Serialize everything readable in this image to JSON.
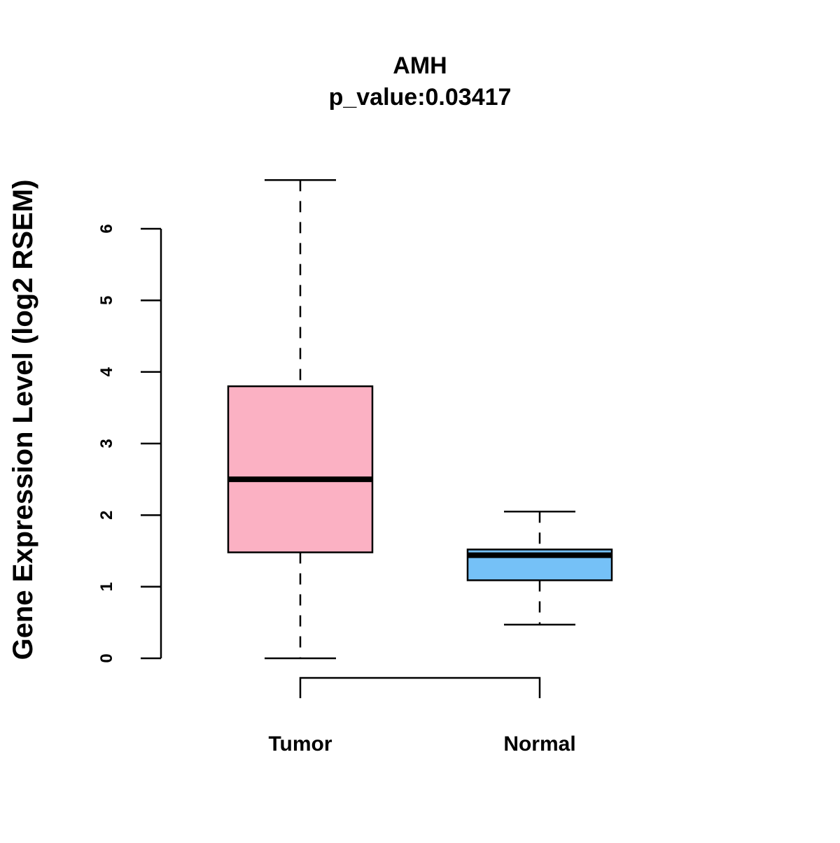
{
  "chart_data": {
    "type": "box",
    "title": "AMH",
    "subtitle": "p_value:0.03417",
    "xlabel": "",
    "ylabel": "Gene Expression Level (log2 RSEM)",
    "ylim": [
      0,
      6
    ],
    "yticks": [
      0,
      1,
      2,
      3,
      4,
      5,
      6
    ],
    "ytick_labels": [
      "0",
      "1",
      "2",
      "3",
      "4",
      "5",
      "6"
    ],
    "grid": false,
    "categories": [
      "Tumor",
      "Normal"
    ],
    "series": [
      {
        "name": "Tumor",
        "min": 0.0,
        "q1": 1.48,
        "median": 2.5,
        "q3": 3.8,
        "max": 6.68,
        "color": "#FBB1C3"
      },
      {
        "name": "Normal",
        "min": 0.47,
        "q1": 1.09,
        "median": 1.44,
        "q3": 1.52,
        "max": 2.05,
        "color": "#75C1F7"
      }
    ],
    "comparison_bracket": [
      "Tumor",
      "Normal"
    ]
  }
}
